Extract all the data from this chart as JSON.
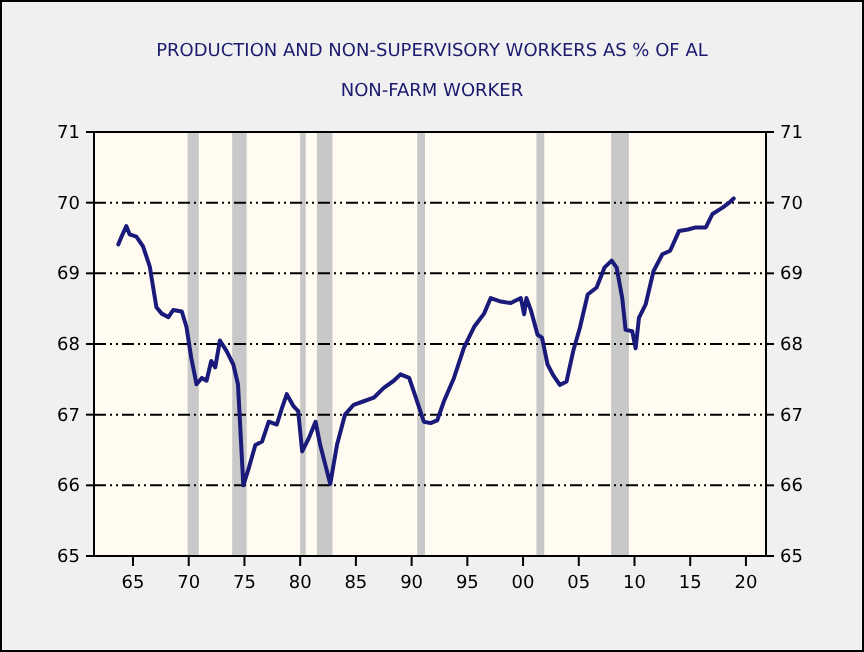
{
  "chart_data": {
    "type": "line",
    "title": "PRODUCTION AND NON-SUPERVISORY WORKERS AS % OF AL",
    "subtitle": "NON-FARM WORKER",
    "xlim": [
      1961.5,
      2021.8
    ],
    "ylim": [
      65,
      71
    ],
    "y2lim": [
      65,
      71
    ],
    "xticks": [
      {
        "value": 1965,
        "label": "65"
      },
      {
        "value": 1970,
        "label": "70"
      },
      {
        "value": 1975,
        "label": "75"
      },
      {
        "value": 1980,
        "label": "80"
      },
      {
        "value": 1985,
        "label": "85"
      },
      {
        "value": 1990,
        "label": "90"
      },
      {
        "value": 1995,
        "label": "95"
      },
      {
        "value": 2000,
        "label": "00"
      },
      {
        "value": 2005,
        "label": "05"
      },
      {
        "value": 2010,
        "label": "10"
      },
      {
        "value": 2015,
        "label": "15"
      },
      {
        "value": 2020,
        "label": "20"
      }
    ],
    "yticks": [
      65,
      66,
      67,
      68,
      69,
      70,
      71
    ],
    "y2ticks": [
      65,
      66,
      67,
      68,
      69,
      70,
      71
    ],
    "grid": "y",
    "line_style": "solid",
    "bands": [
      {
        "axis": "x",
        "from": 1969.9,
        "to": 1970.9,
        "color": "#c8c8c8"
      },
      {
        "axis": "x",
        "from": 1973.9,
        "to": 1975.2,
        "color": "#c8c8c8"
      },
      {
        "axis": "x",
        "from": 1980.0,
        "to": 1980.5,
        "color": "#c8c8c8"
      },
      {
        "axis": "x",
        "from": 1981.5,
        "to": 1982.9,
        "color": "#c8c8c8"
      },
      {
        "axis": "x",
        "from": 1990.5,
        "to": 1991.2,
        "color": "#c8c8c8"
      },
      {
        "axis": "x",
        "from": 2001.2,
        "to": 2001.9,
        "color": "#c8c8c8"
      },
      {
        "axis": "x",
        "from": 2007.9,
        "to": 2009.5,
        "color": "#c8c8c8"
      }
    ],
    "series": [
      {
        "color": "#1a1a7a",
        "x": [
          1963.68,
          1963.92,
          1964.4,
          1964.7,
          1965.3,
          1965.9,
          1966.5,
          1967.1,
          1967.58,
          1968.18,
          1968.6,
          1969.38,
          1969.8,
          1970.22,
          1970.7,
          1971.18,
          1971.6,
          1972.02,
          1972.38,
          1972.8,
          1973.4,
          1974.0,
          1974.42,
          1974.9,
          1975.38,
          1975.98,
          1976.58,
          1977.18,
          1977.9,
          1978.38,
          1978.8,
          1979.4,
          1979.82,
          1980.18,
          1980.78,
          1981.38,
          1981.8,
          1982.7,
          1983.3,
          1984.02,
          1984.8,
          1985.7,
          1986.6,
          1987.5,
          1988.4,
          1989.0,
          1989.78,
          1990.38,
          1991.1,
          1991.7,
          1992.3,
          1992.9,
          1993.8,
          1994.7,
          1995.6,
          1996.5,
          1997.1,
          1998.0,
          1998.9,
          1999.8,
          2000.1,
          2000.3,
          2000.7,
          2001.3,
          2001.7,
          2002.2,
          2002.7,
          2003.3,
          2003.9,
          2004.5,
          2005.1,
          2005.8,
          2006.6,
          2007.3,
          2007.95,
          2008.4,
          2008.9,
          2009.2,
          2009.8,
          2010.1,
          2010.4,
          2011.0,
          2011.7,
          2012.5,
          2013.2,
          2014.0,
          2014.8,
          2015.5,
          2016.4,
          2017.0,
          2017.9,
          2018.5,
          2018.9
        ],
        "values": [
          69.41,
          69.5,
          69.67,
          69.55,
          69.52,
          69.38,
          69.1,
          68.52,
          68.43,
          68.38,
          68.48,
          68.46,
          68.24,
          67.81,
          67.43,
          67.52,
          67.48,
          67.76,
          67.67,
          68.05,
          67.9,
          67.71,
          67.43,
          66.0,
          66.24,
          66.57,
          66.62,
          66.9,
          66.86,
          67.1,
          67.29,
          67.12,
          67.05,
          66.48,
          66.67,
          66.9,
          66.57,
          66.02,
          66.57,
          67.0,
          67.14,
          67.19,
          67.24,
          67.38,
          67.48,
          67.57,
          67.52,
          67.24,
          66.9,
          66.88,
          66.92,
          67.19,
          67.52,
          67.95,
          68.24,
          68.43,
          68.65,
          68.6,
          68.58,
          68.65,
          68.42,
          68.65,
          68.48,
          68.13,
          68.09,
          67.71,
          67.56,
          67.42,
          67.47,
          67.9,
          68.23,
          68.7,
          68.8,
          69.08,
          69.18,
          69.08,
          68.65,
          68.2,
          68.18,
          67.94,
          68.37,
          68.56,
          69.03,
          69.27,
          69.32,
          69.6,
          69.62,
          69.65,
          69.65,
          69.84,
          69.93,
          70.0,
          70.06
        ]
      }
    ]
  }
}
